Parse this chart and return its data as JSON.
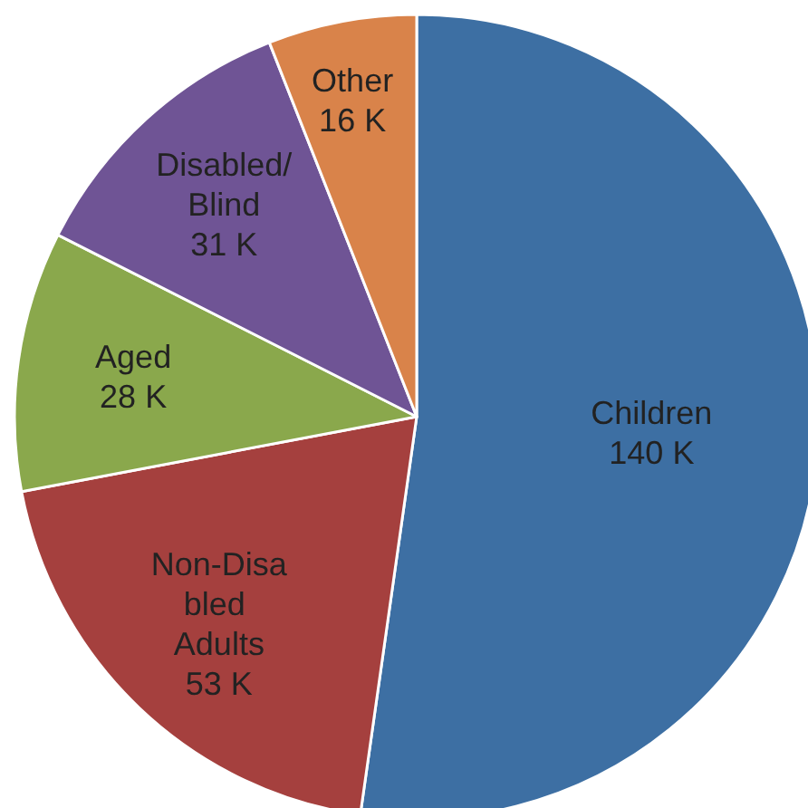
{
  "chart_data": {
    "type": "pie",
    "categories": [
      "Children",
      "Non-Disabled Adults",
      "Aged",
      "Disabled/Blind",
      "Other"
    ],
    "values": [
      140,
      53,
      28,
      31,
      16
    ],
    "value_labels": [
      "140 K",
      "53 K",
      "28 K",
      "31 K",
      "16 K"
    ],
    "colors": [
      "#3d6fa3",
      "#a5403e",
      "#8aa84c",
      "#6f5495",
      "#d9834a"
    ]
  }
}
